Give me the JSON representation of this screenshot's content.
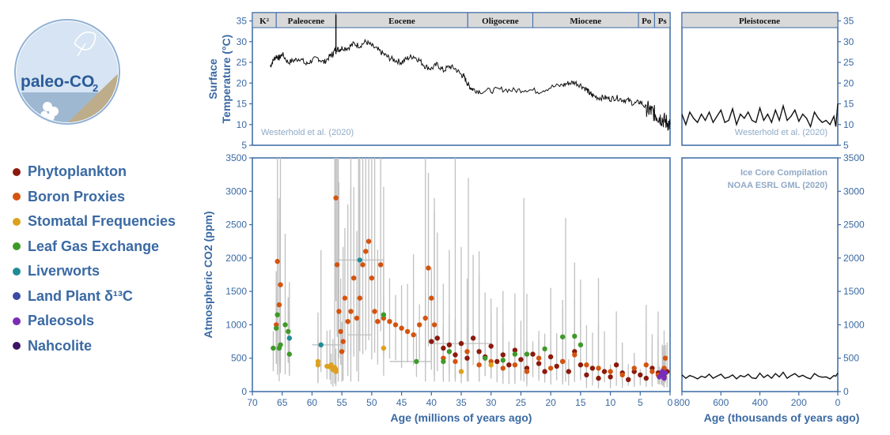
{
  "logo": {
    "text": "paleo-CO",
    "subscript": "2"
  },
  "colors": {
    "axis": "#3a69a3",
    "bar_bg": "#d9d9d9",
    "errbar": "#c0c0c0",
    "temp": "#111111",
    "label_gray": "#8fa9c6"
  },
  "legend": [
    {
      "label": "Phytoplankton",
      "color": "#8b1a0c"
    },
    {
      "label": "Boron Proxies",
      "color": "#d4540f"
    },
    {
      "label": "Stomatal Frequencies",
      "color": "#dda11e"
    },
    {
      "label": "Leaf Gas Exchange",
      "color": "#3e9a27"
    },
    {
      "label": "Liverworts",
      "color": "#1d8c95"
    },
    {
      "label": "Land Plant δ¹³C",
      "color": "#3b4aa4"
    },
    {
      "label": "Paleosols",
      "color": "#7a2cb7"
    },
    {
      "label": "Nahcolite",
      "color": "#3c1465"
    }
  ],
  "chart_data": [
    {
      "type": "line",
      "id": "temp-myr",
      "ylabel": "Surface Temperature (°C)",
      "ylim": [
        5,
        37
      ],
      "xlim": [
        70,
        0
      ],
      "yticks": [
        5,
        10,
        15,
        20,
        25,
        30,
        35
      ],
      "source": "Westerhold et al. (2020)",
      "x": [
        67,
        66.5,
        66,
        65.5,
        65,
        64,
        63,
        62,
        61,
        60,
        59,
        58,
        57,
        56.5,
        56,
        55.5,
        55,
        54,
        53,
        52,
        51,
        50,
        49,
        48,
        47,
        46,
        45,
        44,
        43,
        42,
        41,
        40,
        39,
        38,
        37,
        36,
        35,
        34.5,
        34,
        33.5,
        33,
        32,
        30,
        28,
        26,
        24,
        22,
        20,
        18,
        17,
        16,
        15,
        14,
        13.5,
        13,
        12,
        11,
        10,
        9,
        8,
        7,
        6,
        5,
        4,
        3.5,
        3,
        2.5,
        2,
        1.5,
        1,
        0.5,
        0
      ],
      "y": [
        24,
        25.5,
        26.5,
        26,
        27,
        25,
        25.5,
        26,
        24.5,
        25.5,
        26,
        25,
        26.5,
        27,
        28.5,
        28,
        28.5,
        28.5,
        29.5,
        29,
        30,
        29,
        28,
        27,
        26,
        25.5,
        25,
        26,
        26.5,
        25.5,
        24,
        23.5,
        24.5,
        23,
        24,
        23.5,
        22,
        21.5,
        20,
        19,
        18.5,
        18,
        18.2,
        18.5,
        18.2,
        18.5,
        18,
        19,
        19.5,
        20,
        20.2,
        19.5,
        18.5,
        17.5,
        17,
        16.5,
        16.5,
        16.2,
        16.5,
        16,
        15.8,
        15,
        15.5,
        14,
        13.5,
        13,
        12.5,
        12,
        11.5,
        11,
        10.5,
        10
      ]
    },
    {
      "type": "line",
      "id": "temp-kyr",
      "xlim": [
        800,
        0
      ],
      "ylim": [
        5,
        37
      ],
      "yticks": [
        5,
        10,
        15,
        20,
        25,
        30,
        35
      ],
      "source": "Westerhold et al. (2020)",
      "x": [
        800,
        780,
        760,
        740,
        720,
        700,
        680,
        660,
        640,
        620,
        600,
        580,
        560,
        540,
        520,
        500,
        480,
        460,
        440,
        420,
        400,
        380,
        360,
        340,
        320,
        300,
        280,
        260,
        240,
        220,
        200,
        180,
        160,
        140,
        120,
        100,
        80,
        60,
        40,
        20,
        10,
        0
      ],
      "y": [
        12.5,
        10,
        13,
        11.5,
        10.5,
        12.5,
        11,
        13,
        10.5,
        12,
        13.5,
        10.5,
        11,
        13.8,
        10,
        12.5,
        11.5,
        13,
        11,
        10.5,
        14,
        11,
        12.5,
        10.5,
        13.5,
        11,
        14.5,
        11,
        12,
        13.5,
        10.8,
        12.5,
        11.5,
        9.5,
        13,
        11.5,
        10.5,
        11,
        10,
        12,
        9.5,
        15
      ]
    },
    {
      "type": "scatter",
      "id": "co2-myr",
      "xlabel": "Age (millions of years ago)",
      "ylabel": "Atmospheric CO2 (ppm)",
      "xlim": [
        70,
        0
      ],
      "ylim": [
        0,
        3500
      ],
      "xticks": [
        70,
        65,
        60,
        55,
        50,
        45,
        40,
        35,
        30,
        25,
        20,
        15,
        10,
        5,
        0
      ],
      "yticks": [
        0,
        500,
        1000,
        1500,
        2000,
        2500,
        3000,
        3500
      ],
      "series": [
        {
          "name": "Phytoplankton",
          "points": [
            [
              40,
              750
            ],
            [
              39,
              800
            ],
            [
              38,
              650
            ],
            [
              37,
              700
            ],
            [
              36,
              550
            ],
            [
              35,
              720
            ],
            [
              34,
              500
            ],
            [
              33,
              800
            ],
            [
              32,
              600
            ],
            [
              31,
              520
            ],
            [
              30,
              680
            ],
            [
              29,
              450
            ],
            [
              28,
              550
            ],
            [
              27,
              400
            ],
            [
              26,
              620
            ],
            [
              25,
              480
            ],
            [
              24,
              350
            ],
            [
              23,
              560
            ],
            [
              22,
              420
            ],
            [
              21,
              300
            ],
            [
              20,
              520
            ],
            [
              19,
              380
            ],
            [
              18,
              450
            ],
            [
              17,
              300
            ],
            [
              16,
              600
            ],
            [
              15,
              400
            ],
            [
              14,
              250
            ],
            [
              13,
              350
            ],
            [
              12,
              200
            ],
            [
              11,
              300
            ],
            [
              10,
              220
            ],
            [
              9,
              400
            ],
            [
              8,
              280
            ],
            [
              7,
              180
            ],
            [
              6,
              300
            ],
            [
              5,
              250
            ],
            [
              4,
              200
            ],
            [
              3,
              350
            ],
            [
              2,
              280
            ],
            [
              1,
              220
            ],
            [
              0.5,
              300
            ]
          ]
        },
        {
          "name": "Boron Proxies",
          "points": [
            [
              66,
              1000
            ],
            [
              65.8,
              1950
            ],
            [
              65.5,
              1300
            ],
            [
              65.3,
              1600
            ],
            [
              56,
              2900
            ],
            [
              55.8,
              1900
            ],
            [
              55.5,
              1200
            ],
            [
              55.2,
              900
            ],
            [
              55,
              600
            ],
            [
              54.8,
              750
            ],
            [
              54.5,
              1400
            ],
            [
              54,
              1050
            ],
            [
              53.5,
              1200
            ],
            [
              53,
              1700
            ],
            [
              52.5,
              1100
            ],
            [
              52,
              1400
            ],
            [
              51.5,
              1900
            ],
            [
              51,
              2100
            ],
            [
              50.5,
              2250
            ],
            [
              50,
              1700
            ],
            [
              49.5,
              1200
            ],
            [
              49,
              1050
            ],
            [
              48.5,
              1900
            ],
            [
              48,
              1100
            ],
            [
              47,
              1050
            ],
            [
              46,
              1000
            ],
            [
              45,
              950
            ],
            [
              44,
              900
            ],
            [
              43,
              850
            ],
            [
              42,
              1000
            ],
            [
              41,
              1100
            ],
            [
              40.5,
              1850
            ],
            [
              40,
              1400
            ],
            [
              39.5,
              1000
            ],
            [
              38,
              500
            ],
            [
              36,
              450
            ],
            [
              34,
              600
            ],
            [
              32,
              400
            ],
            [
              30,
              450
            ],
            [
              28,
              350
            ],
            [
              26,
              400
            ],
            [
              24,
              300
            ],
            [
              22,
              500
            ],
            [
              20,
              350
            ],
            [
              18,
              450
            ],
            [
              16,
              550
            ],
            [
              14,
              400
            ],
            [
              12,
              350
            ],
            [
              10,
              300
            ],
            [
              8,
              250
            ],
            [
              6,
              350
            ],
            [
              4,
              400
            ],
            [
              3,
              300
            ],
            [
              2,
              250
            ],
            [
              1,
              350
            ],
            [
              0.8,
              500
            ]
          ]
        },
        {
          "name": "Stomatal Frequencies",
          "points": [
            [
              59,
              450
            ],
            [
              59,
              400
            ],
            [
              57.5,
              380
            ],
            [
              57,
              370
            ],
            [
              56.8,
              400
            ],
            [
              56.5,
              330
            ],
            [
              56.2,
              360
            ],
            [
              56,
              300
            ],
            [
              56,
              330
            ],
            [
              48,
              650
            ],
            [
              35,
              300
            ],
            [
              30,
              400
            ]
          ]
        },
        {
          "name": "Leaf Gas Exchange",
          "points": [
            [
              66.5,
              650
            ],
            [
              66,
              950
            ],
            [
              65.8,
              1150
            ],
            [
              65.5,
              650
            ],
            [
              65.3,
              700
            ],
            [
              64.5,
              1000
            ],
            [
              64,
              900
            ],
            [
              63.8,
              560
            ],
            [
              48,
              1150
            ],
            [
              42.5,
              450
            ],
            [
              38,
              450
            ],
            [
              37,
              600
            ],
            [
              31,
              500
            ],
            [
              28,
              470
            ],
            [
              26,
              560
            ],
            [
              24,
              560
            ],
            [
              21,
              640
            ],
            [
              18,
              820
            ],
            [
              16,
              830
            ],
            [
              15,
              700
            ]
          ]
        },
        {
          "name": "Liverworts",
          "points": [
            [
              63.8,
              800
            ],
            [
              58.5,
              700
            ],
            [
              52,
              1970
            ]
          ]
        },
        {
          "name": "Land Plant δ¹³C",
          "points": [
            [
              1.2,
              250
            ]
          ]
        },
        {
          "name": "Paleosols",
          "points": [
            [
              1.8,
              220
            ],
            [
              1.5,
              250
            ],
            [
              1.3,
              300
            ],
            [
              1,
              200
            ],
            [
              0.8,
              280
            ]
          ]
        },
        {
          "name": "Nahcolite",
          "points": []
        }
      ]
    },
    {
      "type": "line",
      "id": "co2-kyr",
      "xlabel": "Age (thousands of years ago)",
      "xlim": [
        800,
        0
      ],
      "ylim": [
        0,
        3500
      ],
      "xticks": [
        800,
        600,
        400,
        200,
        0
      ],
      "yticks": [
        0,
        500,
        1000,
        1500,
        2000,
        2500,
        3000,
        3500
      ],
      "source_lines": [
        "Ice Core Compilation",
        "NOAA ESRL GML (2020)"
      ],
      "x": [
        800,
        780,
        760,
        740,
        720,
        700,
        680,
        660,
        640,
        620,
        600,
        580,
        560,
        540,
        520,
        500,
        480,
        460,
        440,
        420,
        400,
        380,
        360,
        340,
        320,
        300,
        280,
        260,
        240,
        220,
        200,
        180,
        160,
        140,
        120,
        100,
        80,
        60,
        40,
        20,
        10,
        0
      ],
      "y": [
        250,
        200,
        240,
        220,
        190,
        230,
        210,
        260,
        200,
        230,
        260,
        200,
        215,
        250,
        190,
        240,
        220,
        260,
        205,
        195,
        275,
        210,
        250,
        200,
        270,
        220,
        290,
        200,
        240,
        270,
        220,
        245,
        210,
        190,
        270,
        230,
        215,
        220,
        190,
        240,
        230,
        280
      ]
    }
  ],
  "epochs": [
    {
      "name": "K²",
      "from": 70,
      "to": 66
    },
    {
      "name": "Paleocene",
      "from": 66,
      "to": 56
    },
    {
      "name": "Eocene",
      "from": 56,
      "to": 33.9
    },
    {
      "name": "Oligocene",
      "from": 33.9,
      "to": 23
    },
    {
      "name": "Miocene",
      "from": 23,
      "to": 5.3
    },
    {
      "name": "Po",
      "from": 5.3,
      "to": 2.6
    },
    {
      "name": "Ps",
      "from": 2.6,
      "to": 0
    }
  ],
  "epochs_kyr": [
    {
      "name": "Pleistocene",
      "from": 800,
      "to": 0
    }
  ]
}
